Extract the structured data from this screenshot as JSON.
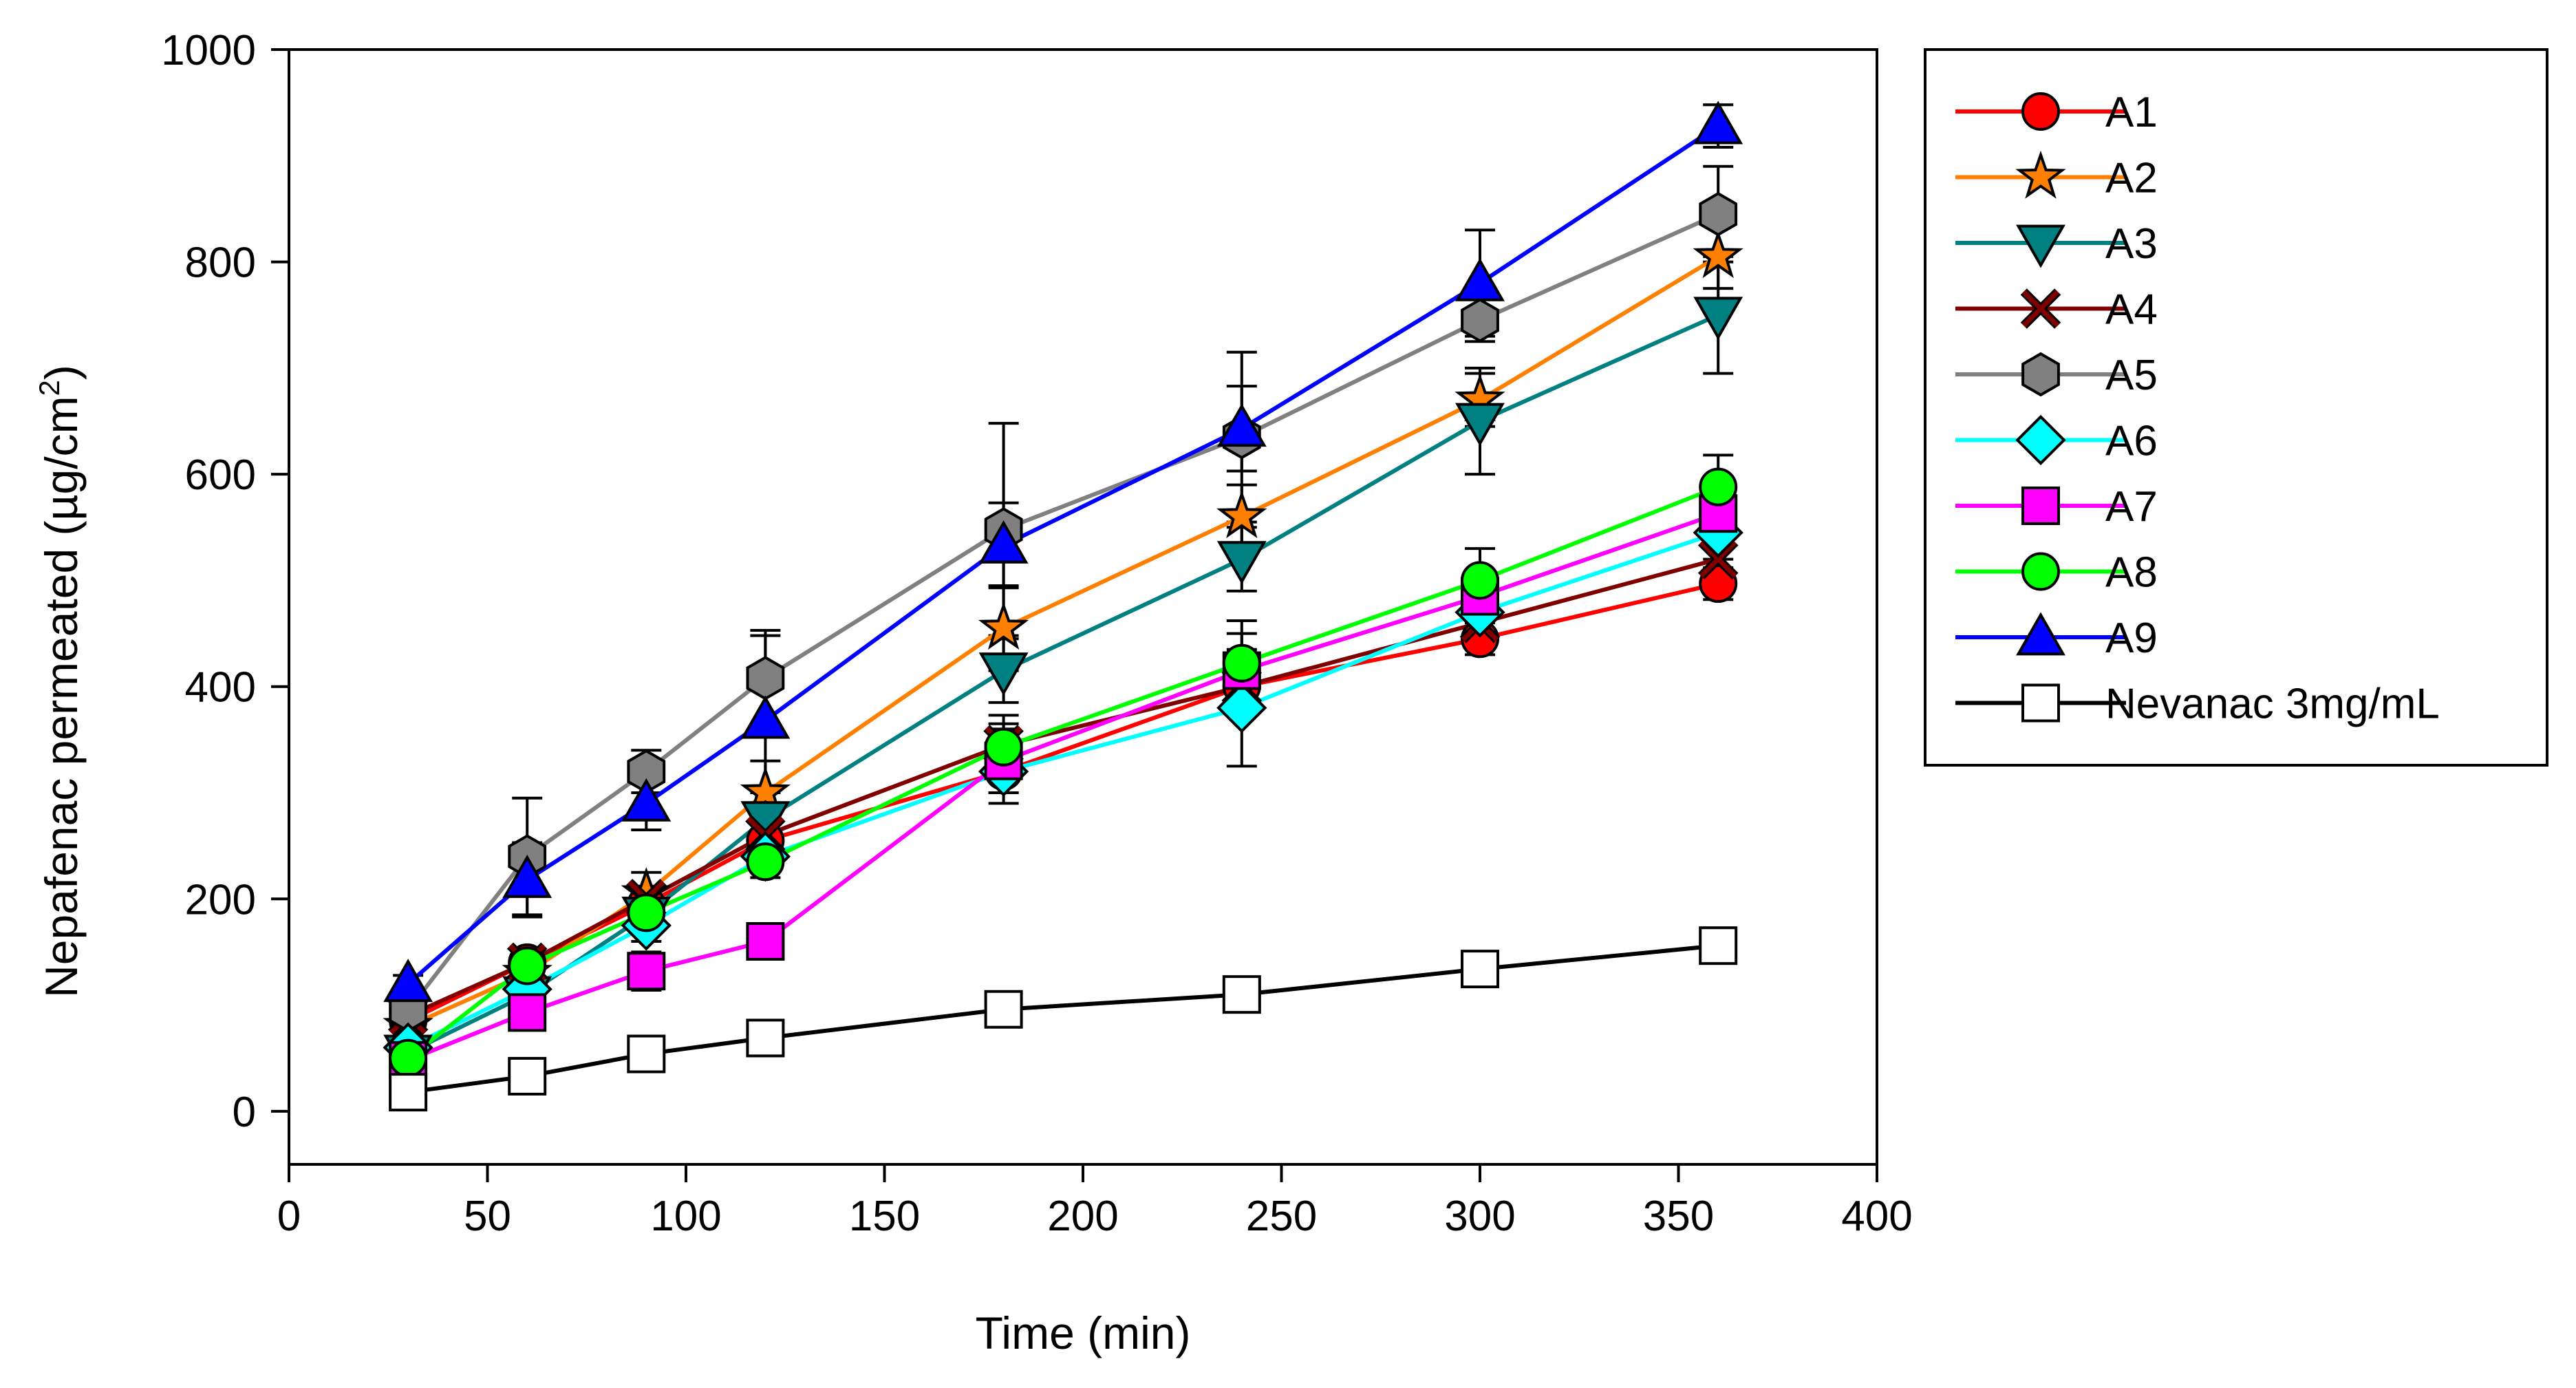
{
  "chart_data": {
    "type": "line",
    "title": "",
    "xlabel": "Time (min)",
    "ylabel": "Nepafenac permeated (µg/cm",
    "ylabel_superscript": "2",
    "ylabel_suffix": ")",
    "xlim": [
      0,
      400
    ],
    "ylim": [
      -50,
      1000
    ],
    "xticks": [
      0,
      50,
      100,
      150,
      200,
      250,
      300,
      350,
      400
    ],
    "yticks": [
      0,
      200,
      400,
      600,
      800,
      1000
    ],
    "grid": false,
    "legend_position": "right",
    "x": [
      30,
      60,
      90,
      120,
      180,
      240,
      300,
      360
    ],
    "series": [
      {
        "name": "A1",
        "marker": "circle",
        "color": "#ff0000",
        "values": [
          85,
          140,
          195,
          255,
          320,
          400,
          445,
          497
        ],
        "errors": [
          8,
          10,
          12,
          15,
          20,
          25,
          15,
          15
        ]
      },
      {
        "name": "A2",
        "marker": "star",
        "color": "#ff8000",
        "values": [
          80,
          130,
          205,
          300,
          455,
          560,
          670,
          805
        ],
        "errors": [
          8,
          12,
          20,
          30,
          40,
          30,
          25,
          30
        ]
      },
      {
        "name": "A3",
        "marker": "triangle-down",
        "color": "#008080",
        "values": [
          55,
          110,
          185,
          275,
          415,
          520,
          650,
          750
        ],
        "errors": [
          6,
          10,
          15,
          25,
          30,
          30,
          50,
          55
        ]
      },
      {
        "name": "A4",
        "marker": "x",
        "color": "#800000",
        "values": [
          90,
          140,
          200,
          260,
          345,
          400,
          460,
          520
        ],
        "errors": [
          8,
          10,
          12,
          15,
          20,
          25,
          20,
          20
        ]
      },
      {
        "name": "A5",
        "marker": "hexagon",
        "color": "#808080",
        "values": [
          95,
          240,
          320,
          408,
          548,
          635,
          745,
          845
        ],
        "errors": [
          10,
          55,
          20,
          45,
          100,
          80,
          20,
          45
        ]
      },
      {
        "name": "A6",
        "marker": "diamond",
        "color": "#00ffff",
        "values": [
          60,
          115,
          175,
          240,
          320,
          380,
          470,
          545
        ],
        "errors": [
          6,
          10,
          15,
          15,
          30,
          55,
          30,
          25
        ]
      },
      {
        "name": "A7",
        "marker": "square",
        "color": "#ff00ff",
        "values": [
          48,
          93,
          132,
          160,
          330,
          415,
          485,
          563
        ],
        "errors": [
          6,
          10,
          18,
          12,
          30,
          35,
          25,
          20
        ]
      },
      {
        "name": "A8",
        "marker": "circle",
        "color": "#00ff00",
        "values": [
          50,
          137,
          187,
          235,
          343,
          422,
          500,
          588
        ],
        "errors": [
          6,
          10,
          15,
          15,
          30,
          40,
          30,
          30
        ]
      },
      {
        "name": "A9",
        "marker": "triangle-up",
        "color": "#0000ff",
        "values": [
          120,
          218,
          290,
          368,
          533,
          643,
          780,
          928
        ],
        "errors": [
          8,
          35,
          25,
          80,
          40,
          40,
          50,
          20
        ]
      },
      {
        "name": "Nevanac 3mg/mL",
        "marker": "square-open",
        "color": "#000000",
        "values": [
          18,
          33,
          54,
          69,
          96,
          110,
          134,
          156
        ],
        "errors": [
          2,
          3,
          4,
          4,
          5,
          5,
          6,
          6
        ]
      }
    ]
  }
}
